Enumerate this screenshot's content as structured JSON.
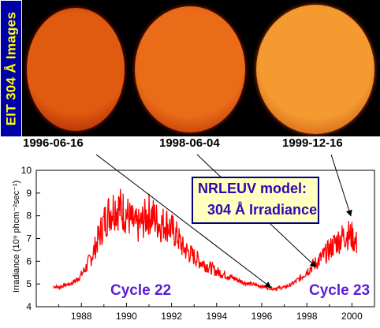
{
  "panel_title": "EIT 304 Å Images",
  "images": [
    {
      "date": "1996-06-16",
      "disk_color": "#e05a10",
      "edge_color": "#a01a00"
    },
    {
      "date": "1998-06-04",
      "disk_color": "#ea6c18",
      "edge_color": "#a82200"
    },
    {
      "date": "1999-12-16",
      "disk_color": "#f49a30",
      "edge_color": "#c04008"
    }
  ],
  "model_label": {
    "line1": "NRLEUV model:",
    "line2": "304 Å Irradiance"
  },
  "cycles": [
    "Cycle 22",
    "Cycle 23"
  ],
  "colors": {
    "series": "#ff0000",
    "arrow": "#000000",
    "label_blue": "#2a0ab0"
  },
  "chart_data": {
    "type": "line",
    "title": "",
    "xlabel": "",
    "ylabel": "Irradiance (10⁹ phcm⁻²sec⁻¹)",
    "xlim": [
      1986,
      2001
    ],
    "ylim": [
      4,
      10
    ],
    "xticks": [
      1988,
      1990,
      1992,
      1994,
      1996,
      1998,
      2000
    ],
    "yticks": [
      4,
      5,
      6,
      7,
      8,
      9,
      10
    ],
    "series": [
      {
        "name": "",
        "x": [
          1986.75,
          1987.0,
          1987.25,
          1987.5,
          1987.75,
          1988.0,
          1988.25,
          1988.5,
          1988.75,
          1989.0,
          1989.25,
          1989.5,
          1989.75,
          1990.0,
          1990.25,
          1990.5,
          1990.75,
          1991.0,
          1991.25,
          1991.5,
          1991.75,
          1992.0,
          1992.25,
          1992.5,
          1992.75,
          1993.0,
          1993.25,
          1993.5,
          1993.75,
          1994.0,
          1994.25,
          1994.5,
          1994.75,
          1995.0,
          1995.25,
          1995.5,
          1995.75,
          1996.0,
          1996.25,
          1996.5,
          1996.75,
          1997.0,
          1997.25,
          1997.5,
          1997.75,
          1998.0,
          1998.25,
          1998.5,
          1998.75,
          1999.0,
          1999.25,
          1999.5,
          1999.75,
          2000.0,
          2000.25
        ],
        "y": [
          4.9,
          4.85,
          4.95,
          5.0,
          5.15,
          5.4,
          5.8,
          6.3,
          7.0,
          7.7,
          8.2,
          8.4,
          8.3,
          8.1,
          7.7,
          7.5,
          7.8,
          8.1,
          7.9,
          7.6,
          7.7,
          7.4,
          7.1,
          6.6,
          6.4,
          6.2,
          6.0,
          5.85,
          5.7,
          5.55,
          5.45,
          5.35,
          5.25,
          5.15,
          5.05,
          5.0,
          4.95,
          4.9,
          4.85,
          4.8,
          4.82,
          4.85,
          4.95,
          5.1,
          5.3,
          5.55,
          5.8,
          6.0,
          6.25,
          6.5,
          6.8,
          7.0,
          7.2,
          7.1,
          6.7
        ]
      }
    ],
    "grid": false,
    "legend": "none"
  }
}
